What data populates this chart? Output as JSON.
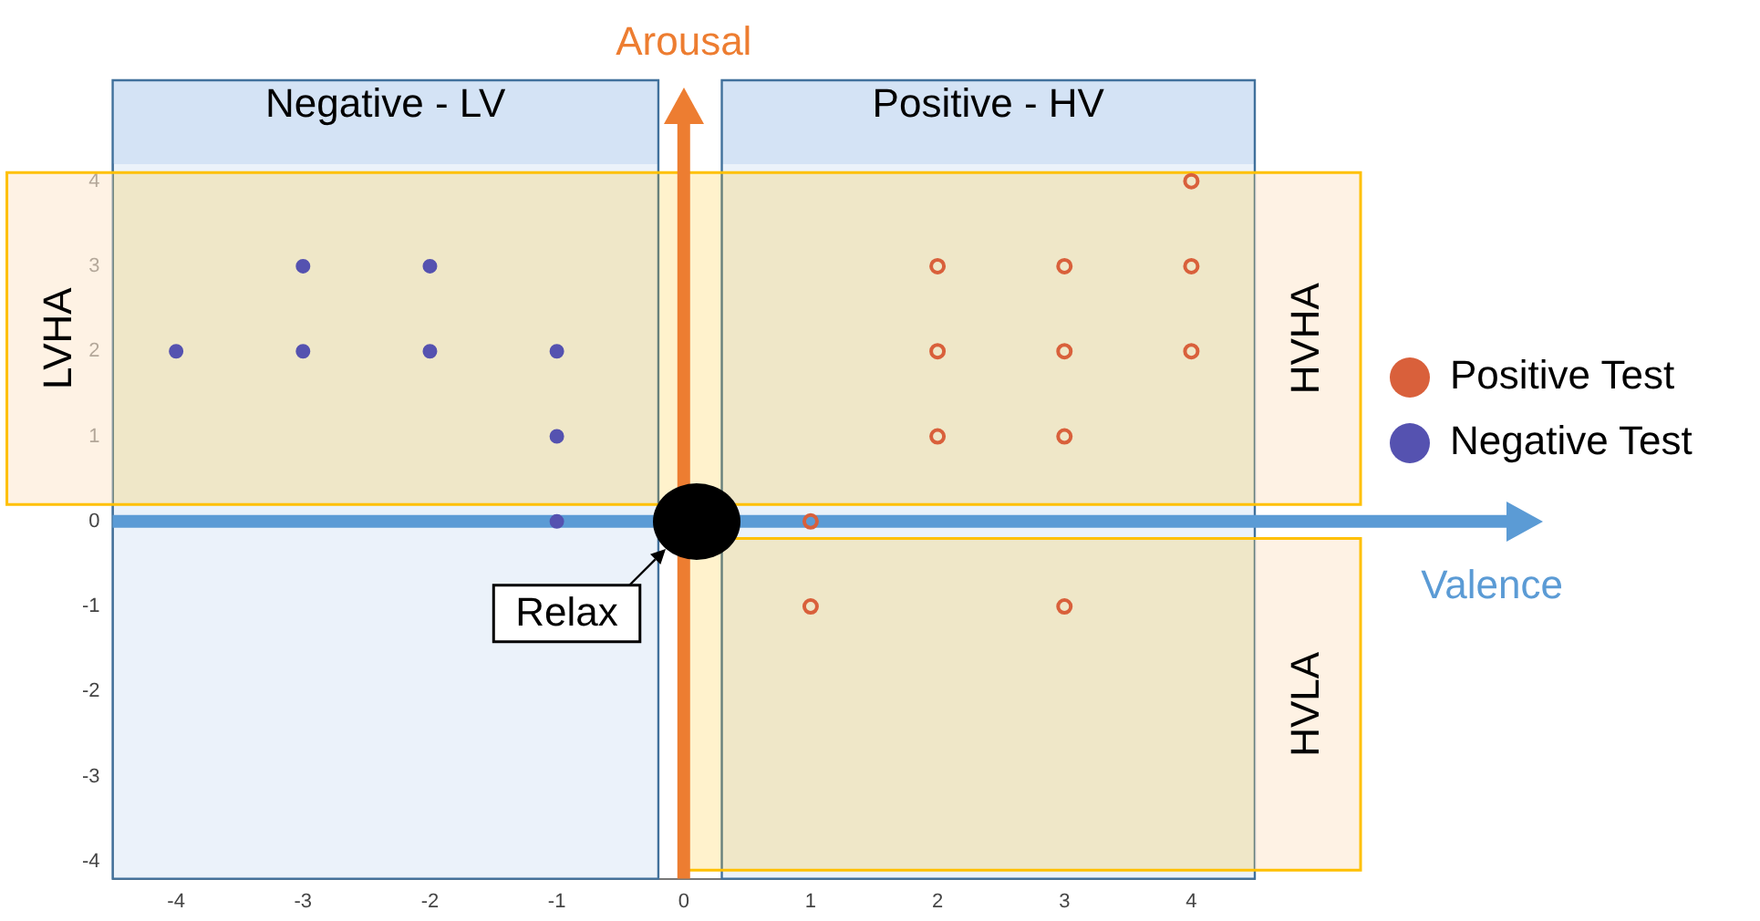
{
  "chart_data": {
    "type": "scatter",
    "xlim": [
      -4.5,
      4.5
    ],
    "ylim": [
      -4.2,
      4.2
    ],
    "xticks": [
      -4,
      -3,
      -2,
      -1,
      0,
      1,
      2,
      3,
      4
    ],
    "yticks": [
      -4,
      -3,
      -2,
      -1,
      0,
      1,
      2,
      3,
      4
    ],
    "grid": false,
    "legend": "right",
    "marker": "circle",
    "series": [
      {
        "name": "Positive Test",
        "color": "#d9603b",
        "x": [
          4,
          2,
          3,
          4,
          2,
          3,
          4,
          2,
          3,
          1,
          1,
          3
        ],
        "values": [
          4,
          3,
          3,
          3,
          2,
          2,
          2,
          1,
          1,
          0,
          -1,
          -1
        ]
      },
      {
        "name": "Negative Test",
        "color": "#5552b0",
        "x": [
          -4,
          -3,
          -3,
          -2,
          -2,
          -1,
          -1,
          -1
        ],
        "values": [
          2,
          3,
          2,
          3,
          2,
          2,
          1,
          0
        ]
      }
    ],
    "bands": [
      {
        "axis": "x",
        "from": -4.5,
        "to": -0.2,
        "label": "Negative - LV",
        "color": "#c6d9f1"
      },
      {
        "axis": "x",
        "from": 0.3,
        "to": 4.5,
        "label": "Positive - HV",
        "color": "#c6d9f1"
      },
      {
        "axis": "y",
        "from": 0.2,
        "to": 4.1,
        "label": "LVHA",
        "color": "#ffc000"
      },
      {
        "axis": "y",
        "from": 0.2,
        "to": 4.1,
        "label": "HVHA",
        "color": "#ffc000"
      },
      {
        "axis": "y",
        "from": -4.1,
        "to": -0.2,
        "label": "HVLA",
        "color": "#ffc000"
      }
    ],
    "ref_lines": [
      {
        "axis": "x",
        "value": 0,
        "label": "Arousal",
        "color": "#ed7d31"
      },
      {
        "axis": "y",
        "value": 0,
        "label": "Valence",
        "color": "#5b9bd5"
      }
    ],
    "annotations": [
      {
        "text": "Relax",
        "x": 0,
        "y": 0
      }
    ]
  }
}
